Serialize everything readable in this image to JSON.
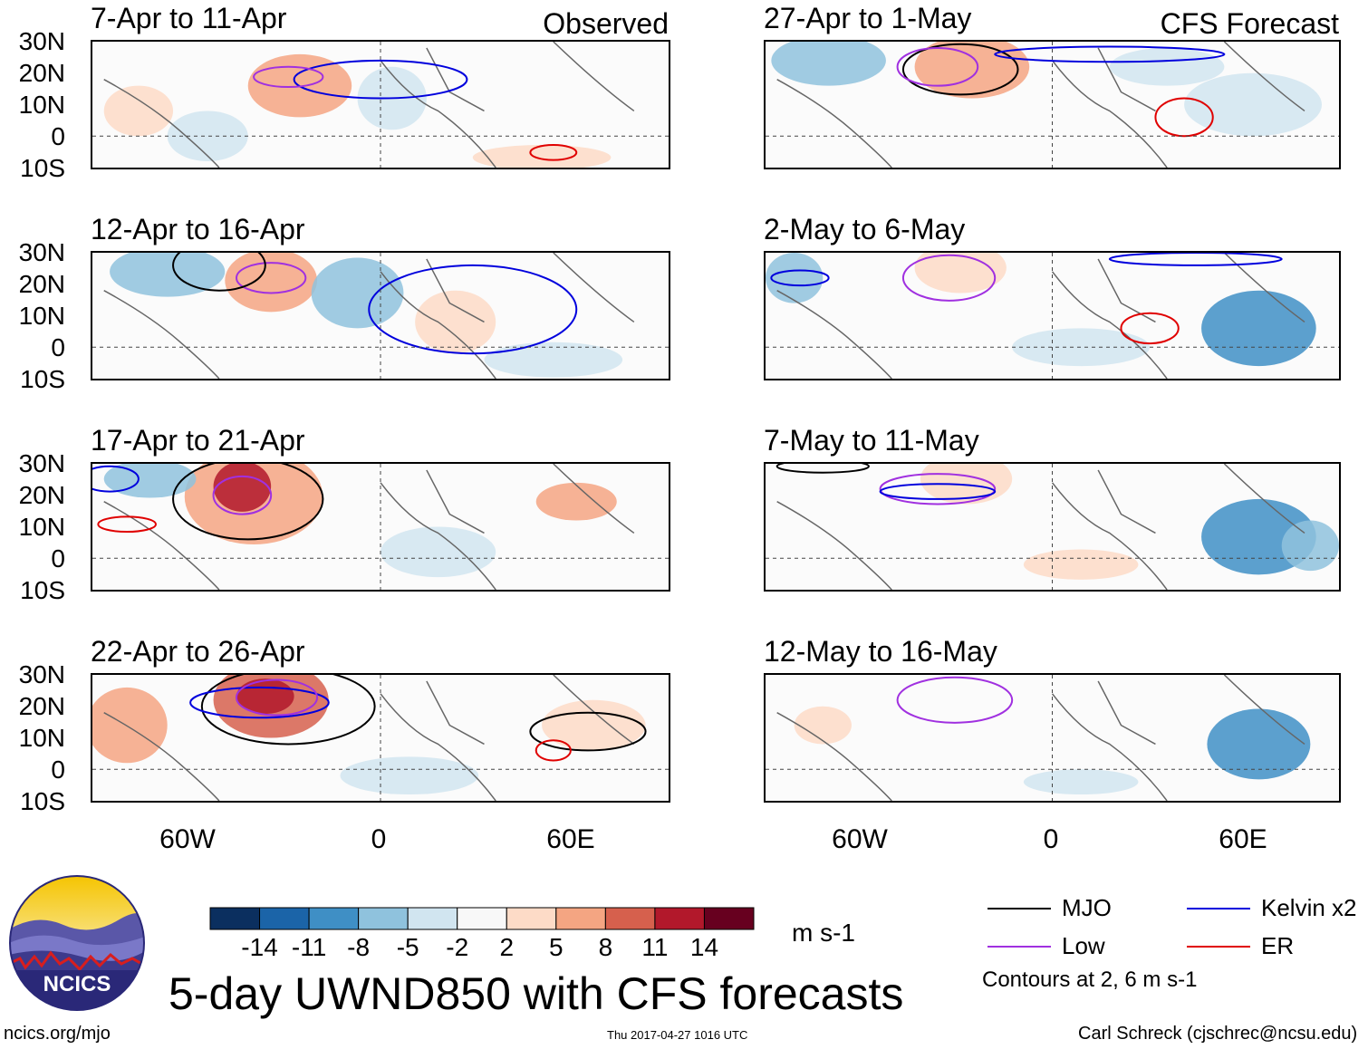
{
  "observed_label": "Observed",
  "forecast_label": "CFS Forecast",
  "panels_left": [
    {
      "title": "7-Apr to 11-Apr"
    },
    {
      "title": "12-Apr to 16-Apr"
    },
    {
      "title": "17-Apr to 21-Apr"
    },
    {
      "title": "22-Apr to 26-Apr"
    }
  ],
  "panels_right": [
    {
      "title": "27-Apr to 1-May"
    },
    {
      "title": "2-May to 6-May"
    },
    {
      "title": "7-May to 11-May"
    },
    {
      "title": "12-May to 16-May"
    }
  ],
  "lat_labels": [
    "30N",
    "20N",
    "10N",
    "0",
    "10S"
  ],
  "lon_labels": [
    "60W",
    "0",
    "60E"
  ],
  "colorbar": {
    "labels": [
      "-14",
      "-11",
      "-8",
      "-5",
      "-2",
      "2",
      "5",
      "8",
      "11",
      "14"
    ],
    "colors": [
      "#0b2f5f",
      "#1b64a8",
      "#3f8fc5",
      "#8fc2dd",
      "#d1e5f0",
      "#f8f8f8",
      "#fddbc7",
      "#f4a582",
      "#d6604d",
      "#b2182b",
      "#67001f"
    ],
    "unit": "m s-1"
  },
  "title": "5-day UWND850 with CFS forecasts",
  "legend": {
    "items": [
      {
        "label": "MJO",
        "color": "#000000"
      },
      {
        "label": "Kelvin x2",
        "color": "#0000dd"
      },
      {
        "label": "Low",
        "color": "#a030e0"
      },
      {
        "label": "ER",
        "color": "#e00000"
      }
    ],
    "note": "Contours at 2, 6 m s-1"
  },
  "logo_text": "NCICS",
  "footer": {
    "left": "ncics.org/mjo",
    "center": "Thu 2017-04-27 1016 UTC",
    "right": "Carl Schreck (cjschrec@ncsu.edu)"
  }
}
